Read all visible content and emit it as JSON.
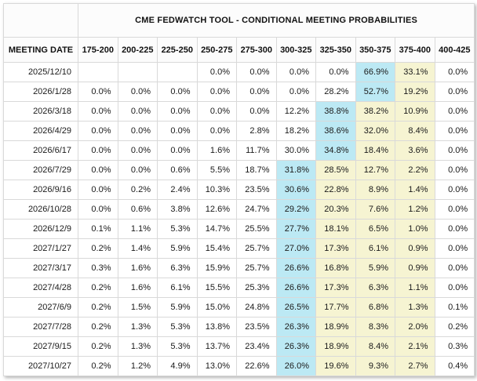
{
  "title": "CME FEDWATCH TOOL - CONDITIONAL MEETING PROBABILITIES",
  "colors": {
    "highlight_blue": "#bce9f4",
    "highlight_yellow": "#f6f4d2",
    "grid_line": "#d9d9d9",
    "header_background": "#fcfcfc"
  },
  "table": {
    "date_column_header": "MEETING DATE",
    "rate_ranges": [
      "175-200",
      "200-225",
      "225-250",
      "250-275",
      "275-300",
      "300-325",
      "325-350",
      "350-375",
      "375-400",
      "400-425"
    ],
    "rows": [
      {
        "date": "2025/12/10",
        "values": [
          "",
          "",
          "",
          "0.0%",
          "0.0%",
          "0.0%",
          "0.0%",
          "66.9%",
          "33.1%",
          "0.0%"
        ],
        "highlights": [
          "",
          "",
          "",
          "",
          "",
          "",
          "",
          "blue",
          "yellow",
          ""
        ]
      },
      {
        "date": "2026/1/28",
        "values": [
          "0.0%",
          "0.0%",
          "0.0%",
          "0.0%",
          "0.0%",
          "0.0%",
          "28.2%",
          "52.7%",
          "19.2%",
          "0.0%"
        ],
        "highlights": [
          "",
          "",
          "",
          "",
          "",
          "",
          "",
          "blue",
          "yellow",
          ""
        ]
      },
      {
        "date": "2026/3/18",
        "values": [
          "0.0%",
          "0.0%",
          "0.0%",
          "0.0%",
          "0.0%",
          "12.2%",
          "38.8%",
          "38.2%",
          "10.9%",
          "0.0%"
        ],
        "highlights": [
          "",
          "",
          "",
          "",
          "",
          "",
          "blue",
          "yellow",
          "yellow",
          ""
        ]
      },
      {
        "date": "2026/4/29",
        "values": [
          "0.0%",
          "0.0%",
          "0.0%",
          "0.0%",
          "2.8%",
          "18.2%",
          "38.6%",
          "32.0%",
          "8.4%",
          "0.0%"
        ],
        "highlights": [
          "",
          "",
          "",
          "",
          "",
          "",
          "blue",
          "yellow",
          "yellow",
          ""
        ]
      },
      {
        "date": "2026/6/17",
        "values": [
          "0.0%",
          "0.0%",
          "0.0%",
          "1.6%",
          "11.7%",
          "30.0%",
          "34.8%",
          "18.4%",
          "3.6%",
          "0.0%"
        ],
        "highlights": [
          "",
          "",
          "",
          "",
          "",
          "",
          "blue",
          "yellow",
          "yellow",
          ""
        ]
      },
      {
        "date": "2026/7/29",
        "values": [
          "0.0%",
          "0.0%",
          "0.6%",
          "5.5%",
          "18.7%",
          "31.8%",
          "28.5%",
          "12.7%",
          "2.2%",
          "0.0%"
        ],
        "highlights": [
          "",
          "",
          "",
          "",
          "",
          "blue",
          "yellow",
          "yellow",
          "yellow",
          ""
        ]
      },
      {
        "date": "2026/9/16",
        "values": [
          "0.0%",
          "0.2%",
          "2.4%",
          "10.3%",
          "23.5%",
          "30.6%",
          "22.8%",
          "8.9%",
          "1.4%",
          "0.0%"
        ],
        "highlights": [
          "",
          "",
          "",
          "",
          "",
          "blue",
          "yellow",
          "yellow",
          "yellow",
          ""
        ]
      },
      {
        "date": "2026/10/28",
        "values": [
          "0.0%",
          "0.6%",
          "3.8%",
          "12.6%",
          "24.7%",
          "29.2%",
          "20.3%",
          "7.6%",
          "1.2%",
          "0.0%"
        ],
        "highlights": [
          "",
          "",
          "",
          "",
          "",
          "blue",
          "yellow",
          "yellow",
          "yellow",
          ""
        ]
      },
      {
        "date": "2026/12/9",
        "values": [
          "0.1%",
          "1.1%",
          "5.3%",
          "14.7%",
          "25.5%",
          "27.7%",
          "18.1%",
          "6.5%",
          "1.0%",
          "0.0%"
        ],
        "highlights": [
          "",
          "",
          "",
          "",
          "",
          "blue",
          "yellow",
          "yellow",
          "yellow",
          ""
        ]
      },
      {
        "date": "2027/1/27",
        "values": [
          "0.2%",
          "1.4%",
          "5.9%",
          "15.4%",
          "25.7%",
          "27.0%",
          "17.3%",
          "6.1%",
          "0.9%",
          "0.0%"
        ],
        "highlights": [
          "",
          "",
          "",
          "",
          "",
          "blue",
          "yellow",
          "yellow",
          "yellow",
          ""
        ]
      },
      {
        "date": "2027/3/17",
        "values": [
          "0.3%",
          "1.6%",
          "6.3%",
          "15.9%",
          "25.7%",
          "26.6%",
          "16.8%",
          "5.9%",
          "0.9%",
          "0.0%"
        ],
        "highlights": [
          "",
          "",
          "",
          "",
          "",
          "blue",
          "yellow",
          "yellow",
          "yellow",
          ""
        ]
      },
      {
        "date": "2027/4/28",
        "values": [
          "0.2%",
          "1.6%",
          "6.1%",
          "15.5%",
          "25.3%",
          "26.6%",
          "17.3%",
          "6.3%",
          "1.1%",
          "0.0%"
        ],
        "highlights": [
          "",
          "",
          "",
          "",
          "",
          "blue",
          "yellow",
          "yellow",
          "yellow",
          ""
        ]
      },
      {
        "date": "2027/6/9",
        "values": [
          "0.2%",
          "1.5%",
          "5.9%",
          "15.0%",
          "24.8%",
          "26.5%",
          "17.7%",
          "6.8%",
          "1.3%",
          "0.1%"
        ],
        "highlights": [
          "",
          "",
          "",
          "",
          "",
          "blue",
          "yellow",
          "yellow",
          "yellow",
          ""
        ]
      },
      {
        "date": "2027/7/28",
        "values": [
          "0.2%",
          "1.3%",
          "5.3%",
          "13.8%",
          "23.5%",
          "26.3%",
          "18.9%",
          "8.3%",
          "2.0%",
          "0.2%"
        ],
        "highlights": [
          "",
          "",
          "",
          "",
          "",
          "blue",
          "yellow",
          "yellow",
          "yellow",
          ""
        ]
      },
      {
        "date": "2027/9/15",
        "values": [
          "0.2%",
          "1.3%",
          "5.3%",
          "13.7%",
          "23.4%",
          "26.3%",
          "18.9%",
          "8.4%",
          "2.1%",
          "0.3%"
        ],
        "highlights": [
          "",
          "",
          "",
          "",
          "",
          "blue",
          "yellow",
          "yellow",
          "yellow",
          ""
        ]
      },
      {
        "date": "2027/10/27",
        "values": [
          "0.2%",
          "1.2%",
          "4.9%",
          "13.0%",
          "22.6%",
          "26.0%",
          "19.6%",
          "9.3%",
          "2.7%",
          "0.4%"
        ],
        "highlights": [
          "",
          "",
          "",
          "",
          "",
          "blue",
          "yellow",
          "yellow",
          "yellow",
          ""
        ]
      }
    ]
  }
}
